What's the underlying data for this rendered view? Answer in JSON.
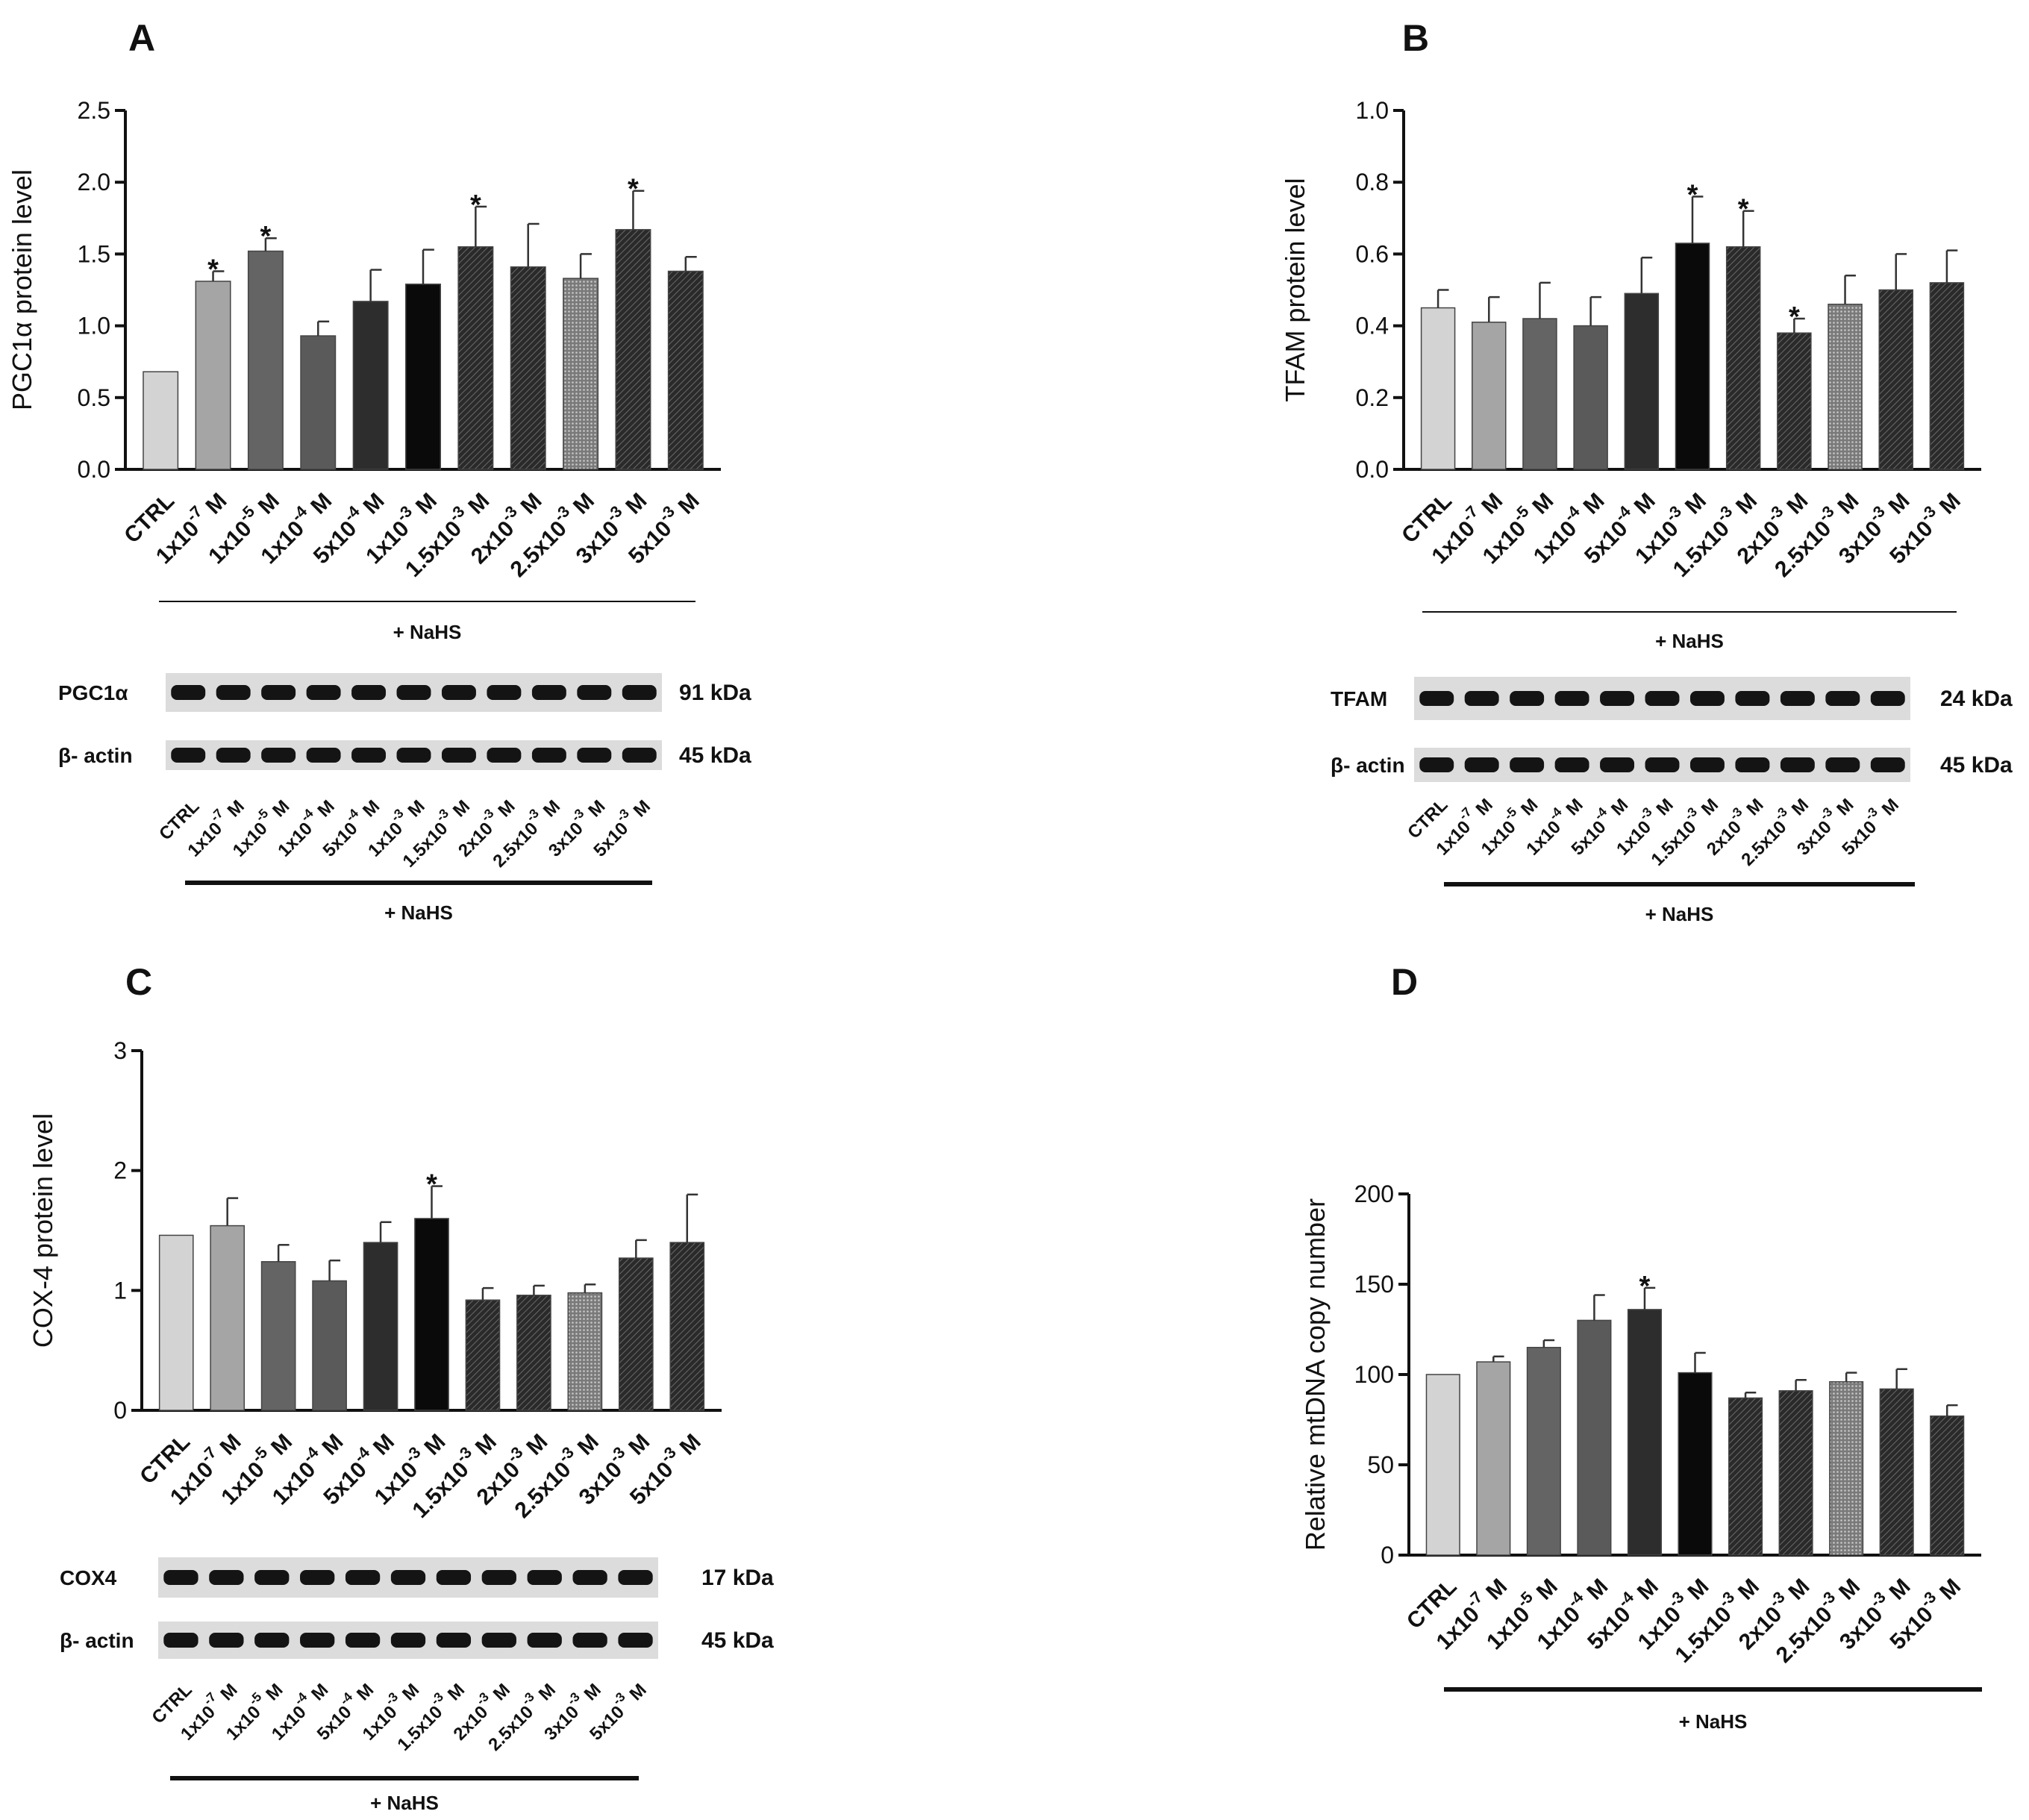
{
  "colors": {
    "fills": [
      "#d3d3d3",
      "#a5a5a5",
      "#646464",
      "#5a5a5a",
      "#2d2d2d",
      "#0a0a0a",
      "#3a3a3a",
      "#303030",
      "#8a8a8a",
      "#262626",
      "#363636"
    ],
    "patterned": [
      false,
      false,
      false,
      false,
      false,
      false,
      true,
      true,
      true,
      true,
      true
    ],
    "blot_bg": "#dcdcdc",
    "band": "#141414"
  },
  "chart_data": [
    {
      "panel": "A",
      "type": "bar",
      "ylabel": "PGC1α protein level",
      "ylim": [
        0,
        2.5
      ],
      "yticks": [
        "0.0",
        "0.5",
        "1.0",
        "1.5",
        "2.0",
        "2.5"
      ],
      "categories": [
        "CTRL",
        "1x10-7 M",
        "1x10-5 M",
        "1x10-4 M",
        "5x10-4 M",
        "1x10-3 M",
        "1.5x10-3 M",
        "2x10-3 M",
        "2.5x10-3 M",
        "3x10-3 M",
        "5x10-3 M"
      ],
      "values": [
        0.68,
        1.31,
        1.52,
        0.93,
        1.17,
        1.29,
        1.55,
        1.41,
        1.33,
        1.67,
        1.38
      ],
      "errors": [
        0,
        0.07,
        0.09,
        0.1,
        0.22,
        0.24,
        0.28,
        0.3,
        0.17,
        0.27,
        0.1
      ],
      "significant": [
        false,
        true,
        true,
        false,
        false,
        false,
        true,
        false,
        false,
        true,
        false
      ],
      "sig_marker": "*",
      "treatment_label": "+ NaHS",
      "blot": {
        "rows": [
          {
            "label": "PGC1α",
            "kda": "91 kDa"
          },
          {
            "label": "β- actin",
            "kda": "45 kDa"
          }
        ],
        "lanes": [
          "CTRL",
          "1x10-7 M",
          "1x10-5 M",
          "1x10-4 M",
          "5x10-4 M",
          "1x10-3 M",
          "1.5x10-3 M",
          "2x10-3 M",
          "2.5x10-3 M",
          "3x10-3 M",
          "5x10-3 M"
        ],
        "treatment_label": "+ NaHS"
      }
    },
    {
      "panel": "B",
      "type": "bar",
      "ylabel": "TFAM protein level",
      "ylim": [
        0,
        1.0
      ],
      "yticks": [
        "0.0",
        "0.2",
        "0.4",
        "0.6",
        "0.8",
        "1.0"
      ],
      "categories": [
        "CTRL",
        "1x10-7 M",
        "1x10-5 M",
        "1x10-4 M",
        "5x10-4 M",
        "1x10-3 M",
        "1.5x10-3 M",
        "2x10-3 M",
        "2.5x10-3 M",
        "3x10-3 M",
        "5x10-3 M"
      ],
      "values": [
        0.45,
        0.41,
        0.42,
        0.4,
        0.49,
        0.63,
        0.62,
        0.38,
        0.46,
        0.5,
        0.52
      ],
      "errors": [
        0.05,
        0.07,
        0.1,
        0.08,
        0.1,
        0.13,
        0.1,
        0.04,
        0.08,
        0.1,
        0.09
      ],
      "significant": [
        false,
        false,
        false,
        false,
        false,
        true,
        true,
        true,
        false,
        false,
        false
      ],
      "sig_marker": "*",
      "treatment_label": "+ NaHS",
      "blot": {
        "rows": [
          {
            "label": "TFAM",
            "kda": "24 kDa"
          },
          {
            "label": "β- actin",
            "kda": "45 kDa"
          }
        ],
        "lanes": [
          "CTRL",
          "1x10-7 M",
          "1x10-5 M",
          "1x10-4 M",
          "5x10-4 M",
          "1x10-3 M",
          "1.5x10-3 M",
          "2x10-3 M",
          "2.5x10-3 M",
          "3x10-3 M",
          "5x10-3 M"
        ],
        "treatment_label": "+ NaHS"
      }
    },
    {
      "panel": "C",
      "type": "bar",
      "ylabel": "COX-4 protein level",
      "ylim": [
        0,
        3
      ],
      "yticks": [
        "0",
        "1",
        "2",
        "3"
      ],
      "categories": [
        "CTRL",
        "1x10-7 M",
        "1x10-5 M",
        "1x10-4 M",
        "5x10-4 M",
        "1x10-3 M",
        "1.5x10-3 M",
        "2x10-3 M",
        "2.5x10-3 M",
        "3x10-3 M",
        "5x10-3 M"
      ],
      "values": [
        1.46,
        1.54,
        1.24,
        1.08,
        1.4,
        1.6,
        0.92,
        0.96,
        0.98,
        1.27,
        1.4
      ],
      "errors": [
        0,
        0.23,
        0.14,
        0.17,
        0.17,
        0.27,
        0.1,
        0.08,
        0.07,
        0.15,
        0.4
      ],
      "significant": [
        false,
        false,
        false,
        false,
        false,
        true,
        false,
        false,
        false,
        false,
        false
      ],
      "sig_marker": "*",
      "blot": {
        "rows": [
          {
            "label": "COX4",
            "kda": "17 kDa"
          },
          {
            "label": "β- actin",
            "kda": "45 kDa"
          }
        ],
        "lanes": [
          "CTRL",
          "1x10-7 M",
          "1x10-5 M",
          "1x10-4 M",
          "5x10-4 M",
          "1x10-3 M",
          "1.5x10-3 M",
          "2x10-3 M",
          "2.5x10-3 M",
          "3x10-3 M",
          "5x10-3 M"
        ],
        "treatment_label": "+ NaHS"
      }
    },
    {
      "panel": "D",
      "type": "bar",
      "ylabel": "Relative mtDNA copy number",
      "ylim": [
        0,
        200
      ],
      "yticks": [
        "0",
        "50",
        "100",
        "150",
        "200"
      ],
      "categories": [
        "CTRL",
        "1x10-7 M",
        "1x10-5 M",
        "1x10-4 M",
        "5x10-4 M",
        "1x10-3 M",
        "1.5x10-3 M",
        "2x10-3 M",
        "2.5x10-3 M",
        "3x10-3 M",
        "5x10-3 M"
      ],
      "values": [
        100,
        107,
        115,
        130,
        136,
        101,
        87,
        91,
        96,
        92,
        77
      ],
      "errors": [
        0,
        3,
        4,
        14,
        12,
        11,
        3,
        6,
        5,
        11,
        6
      ],
      "significant": [
        false,
        false,
        false,
        false,
        true,
        false,
        false,
        false,
        false,
        false,
        false
      ],
      "sig_marker": "*",
      "treatment_label": "+ NaHS"
    }
  ]
}
